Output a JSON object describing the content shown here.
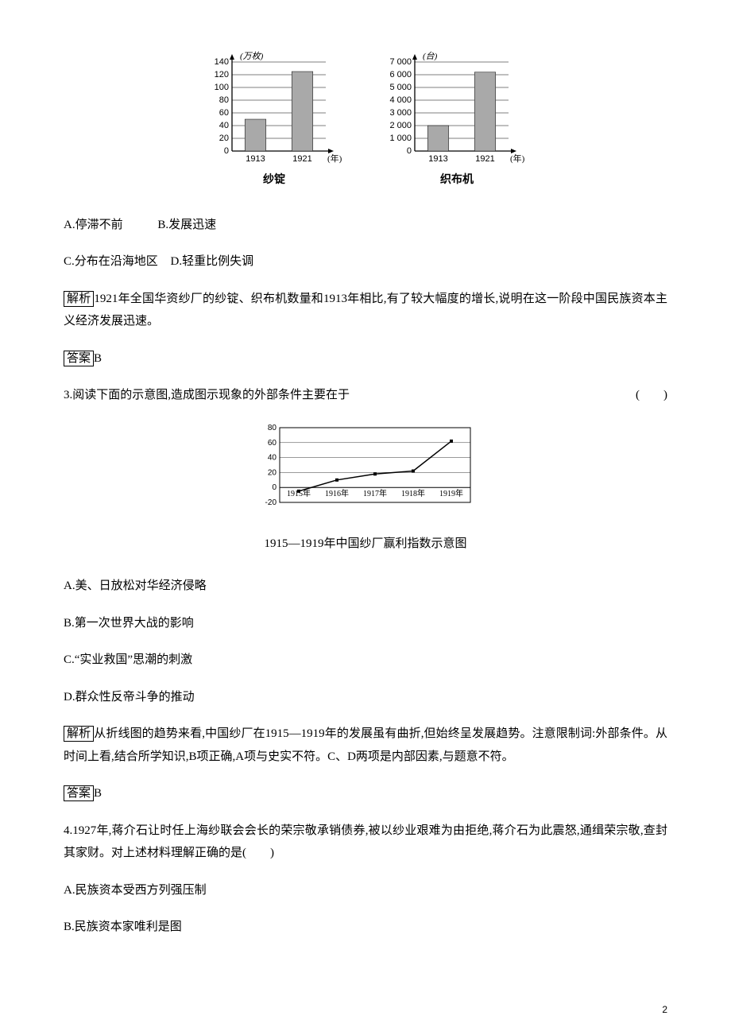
{
  "chart1": {
    "type": "bar",
    "ylabel_top": "(万枚)",
    "xlabel_right": "(年)",
    "bottom_label": "纱锭",
    "categories": [
      "1913",
      "1921"
    ],
    "values": [
      50,
      125
    ],
    "ylim": [
      0,
      140
    ],
    "yticks": [
      0,
      20,
      40,
      60,
      80,
      100,
      120,
      140
    ],
    "bar_color": "#a9a9a9",
    "axis_color": "#000000",
    "grid_color": "#000000",
    "bar_width": 0.45,
    "label_fontsize": 11,
    "tick_fontsize": 11,
    "bottom_label_fontsize": 14
  },
  "chart2": {
    "type": "bar",
    "ylabel_top": "(台)",
    "xlabel_right": "(年)",
    "bottom_label": "织布机",
    "categories": [
      "1913",
      "1921"
    ],
    "values": [
      2000,
      6200
    ],
    "ylim": [
      0,
      7000
    ],
    "yticks": [
      0,
      1000,
      2000,
      3000,
      4000,
      5000,
      6000,
      7000
    ],
    "bar_color": "#a9a9a9",
    "axis_color": "#000000",
    "grid_color": "#000000",
    "bar_width": 0.45,
    "label_fontsize": 11,
    "tick_fontsize": 11,
    "bottom_label_fontsize": 14
  },
  "q2": {
    "options": {
      "A": "A.停滞不前",
      "B": "B.发展迅速",
      "C": "C.分布在沿海地区",
      "D": "D.轻重比例失调"
    },
    "analysis_label": "解析",
    "analysis_text": "1921年全国华资纱厂的纱锭、织布机数量和1913年相比,有了较大幅度的增长,说明在这一阶段中国民族资本主义经济发展迅速。",
    "answer_label": "答案",
    "answer_value": "B"
  },
  "q3": {
    "stem_prefix": "3.",
    "stem": "阅读下面的示意图,造成图示现象的外部条件主要在于",
    "paren": "(　　)",
    "line_chart": {
      "type": "line",
      "categories": [
        "1915年",
        "1916年",
        "1917年",
        "1918年",
        "1919年"
      ],
      "values": [
        -5,
        10,
        18,
        22,
        62
      ],
      "ylim": [
        -20,
        80
      ],
      "yticks": [
        -20,
        0,
        20,
        40,
        60,
        80
      ],
      "line_color": "#000000",
      "axis_color": "#000000",
      "tick_fontsize": 10,
      "caption": "1915—1919年中国纱厂赢利指数示意图"
    },
    "options": {
      "A": "A.美、日放松对华经济侵略",
      "B": "B.第一次世界大战的影响",
      "C": "C.“实业救国”思潮的刺激",
      "D": "D.群众性反帝斗争的推动"
    },
    "analysis_label": "解析",
    "analysis_text": "从折线图的趋势来看,中国纱厂在1915—1919年的发展虽有曲折,但始终呈发展趋势。注意限制词:外部条件。从时间上看,结合所学知识,B项正确,A项与史实不符。C、D两项是内部因素,与题意不符。",
    "answer_label": "答案",
    "answer_value": "B"
  },
  "q4": {
    "stem_prefix": "4.",
    "stem": "1927年,蒋介石让时任上海纱联会会长的荣宗敬承销债券,被以纱业艰难为由拒绝,蒋介石为此震怒,通缉荣宗敬,查封其家财。对上述材料理解正确的是(　　)",
    "options": {
      "A": "A.民族资本受西方列强压制",
      "B": "B.民族资本家唯利是图"
    }
  },
  "page_number": "2"
}
